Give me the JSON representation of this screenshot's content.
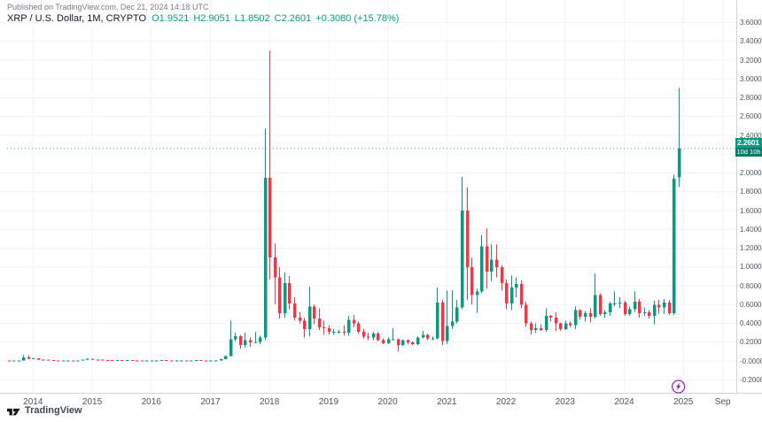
{
  "header": {
    "publish_text": "Published on TradingView.com, Dec 21, 2024 14:18 UTC"
  },
  "legend": {
    "title": "XRP / U.S. Dollar, 1M, CRYPTO",
    "items": [
      "O1.9521",
      "H2.9051",
      "L1.8502",
      "C2.2601",
      "+0.3080 (+15.78%)"
    ]
  },
  "price_axis": {
    "ticks": [
      "3.6000",
      "3.4000",
      "3.2000",
      "3.0000",
      "2.8000",
      "2.6000",
      "2.4000",
      "2.0000",
      "1.8000",
      "1.6000",
      "1.4000",
      "1.2000",
      "1.0000",
      "0.8000",
      "0.6000",
      "0.4000",
      "0.2000",
      "-0.0000",
      "-0.2000"
    ],
    "tag": {
      "price": "2.2601",
      "countdown": "10d 10h"
    }
  },
  "time_axis": {
    "ticks": [
      "2014",
      "2015",
      "2016",
      "2017",
      "2018",
      "2019",
      "2020",
      "2021",
      "2022",
      "2023",
      "2024",
      "2025",
      "Sep"
    ]
  },
  "footer": {
    "brand": "TradingView"
  },
  "colors": {
    "up": "#089981",
    "down": "#F23645",
    "event": "#9C27B0",
    "grid": "#F0F3FA",
    "border": "#D1D4DC"
  },
  "event_marker": {
    "month": "2024-12",
    "icon": "lightning"
  },
  "chart_data": {
    "type": "candlestick",
    "title": "XRP / U.S. Dollar",
    "interval": "1M",
    "exchange": "CRYPTO",
    "current": {
      "open": 1.9521,
      "high": 2.9051,
      "low": 1.8502,
      "close": 2.2601,
      "change": 0.308,
      "change_pct": 15.78
    },
    "price_line": 2.2601,
    "ylim": [
      -0.2,
      3.6
    ],
    "x_start": "2013-08",
    "months": [
      [
        "2013-08",
        0.005,
        0.006,
        0.004,
        0.004
      ],
      [
        "2013-09",
        0.004,
        0.005,
        0.003,
        0.004
      ],
      [
        "2013-10",
        0.004,
        0.005,
        0.003,
        0.004
      ],
      [
        "2013-11",
        0.004,
        0.062,
        0.004,
        0.04
      ],
      [
        "2013-12",
        0.04,
        0.06,
        0.018,
        0.025
      ],
      [
        "2014-01",
        0.025,
        0.031,
        0.018,
        0.027
      ],
      [
        "2014-02",
        0.027,
        0.028,
        0.01,
        0.013
      ],
      [
        "2014-03",
        0.013,
        0.016,
        0.01,
        0.012
      ],
      [
        "2014-04",
        0.012,
        0.013,
        0.006,
        0.008
      ],
      [
        "2014-05",
        0.008,
        0.009,
        0.004,
        0.005
      ],
      [
        "2014-06",
        0.005,
        0.006,
        0.003,
        0.004
      ],
      [
        "2014-07",
        0.004,
        0.006,
        0.003,
        0.005
      ],
      [
        "2014-08",
        0.005,
        0.006,
        0.004,
        0.005
      ],
      [
        "2014-09",
        0.005,
        0.006,
        0.003,
        0.004
      ],
      [
        "2014-10",
        0.004,
        0.006,
        0.003,
        0.005
      ],
      [
        "2014-11",
        0.005,
        0.015,
        0.004,
        0.012
      ],
      [
        "2014-12",
        0.012,
        0.028,
        0.011,
        0.022
      ],
      [
        "2015-01",
        0.022,
        0.024,
        0.01,
        0.014
      ],
      [
        "2015-02",
        0.014,
        0.016,
        0.01,
        0.013
      ],
      [
        "2015-03",
        0.013,
        0.014,
        0.007,
        0.009
      ],
      [
        "2015-04",
        0.009,
        0.01,
        0.006,
        0.008
      ],
      [
        "2015-05",
        0.008,
        0.009,
        0.006,
        0.007
      ],
      [
        "2015-06",
        0.007,
        0.012,
        0.006,
        0.009
      ],
      [
        "2015-07",
        0.009,
        0.01,
        0.007,
        0.008
      ],
      [
        "2015-08",
        0.008,
        0.009,
        0.006,
        0.008
      ],
      [
        "2015-09",
        0.008,
        0.008,
        0.006,
        0.007
      ],
      [
        "2015-10",
        0.007,
        0.008,
        0.004,
        0.005
      ],
      [
        "2015-11",
        0.005,
        0.006,
        0.003,
        0.004
      ],
      [
        "2015-12",
        0.004,
        0.007,
        0.004,
        0.006
      ],
      [
        "2016-01",
        0.006,
        0.007,
        0.005,
        0.006
      ],
      [
        "2016-02",
        0.006,
        0.008,
        0.005,
        0.007
      ],
      [
        "2016-03",
        0.007,
        0.009,
        0.006,
        0.008
      ],
      [
        "2016-04",
        0.008,
        0.008,
        0.006,
        0.007
      ],
      [
        "2016-05",
        0.007,
        0.007,
        0.005,
        0.006
      ],
      [
        "2016-06",
        0.006,
        0.008,
        0.005,
        0.007
      ],
      [
        "2016-07",
        0.007,
        0.008,
        0.006,
        0.007
      ],
      [
        "2016-08",
        0.007,
        0.007,
        0.005,
        0.006
      ],
      [
        "2016-09",
        0.006,
        0.007,
        0.005,
        0.006
      ],
      [
        "2016-10",
        0.006,
        0.009,
        0.006,
        0.008
      ],
      [
        "2016-11",
        0.008,
        0.008,
        0.006,
        0.007
      ],
      [
        "2016-12",
        0.007,
        0.007,
        0.005,
        0.006
      ],
      [
        "2017-01",
        0.006,
        0.007,
        0.005,
        0.006
      ],
      [
        "2017-02",
        0.006,
        0.007,
        0.005,
        0.006
      ],
      [
        "2017-03",
        0.006,
        0.026,
        0.005,
        0.02
      ],
      [
        "2017-04",
        0.02,
        0.06,
        0.018,
        0.051
      ],
      [
        "2017-05",
        0.051,
        0.43,
        0.048,
        0.23
      ],
      [
        "2017-06",
        0.23,
        0.3,
        0.21,
        0.263
      ],
      [
        "2017-07",
        0.263,
        0.275,
        0.13,
        0.17
      ],
      [
        "2017-08",
        0.17,
        0.3,
        0.14,
        0.22
      ],
      [
        "2017-09",
        0.22,
        0.25,
        0.15,
        0.2
      ],
      [
        "2017-10",
        0.2,
        0.31,
        0.19,
        0.204
      ],
      [
        "2017-11",
        0.204,
        0.27,
        0.18,
        0.25
      ],
      [
        "2017-12",
        0.25,
        2.47,
        0.22,
        1.95
      ],
      [
        "2018-01",
        1.95,
        3.3,
        0.868,
        1.1
      ],
      [
        "2018-02",
        1.1,
        1.25,
        0.6,
        0.89
      ],
      [
        "2018-03",
        0.89,
        1.0,
        0.45,
        0.51
      ],
      [
        "2018-04",
        0.51,
        0.94,
        0.46,
        0.83
      ],
      [
        "2018-05",
        0.83,
        0.9,
        0.55,
        0.61
      ],
      [
        "2018-06",
        0.61,
        0.68,
        0.43,
        0.46
      ],
      [
        "2018-07",
        0.46,
        0.52,
        0.4,
        0.43
      ],
      [
        "2018-08",
        0.43,
        0.46,
        0.25,
        0.34
      ],
      [
        "2018-09",
        0.34,
        0.79,
        0.26,
        0.58
      ],
      [
        "2018-10",
        0.58,
        0.6,
        0.39,
        0.45
      ],
      [
        "2018-11",
        0.45,
        0.56,
        0.33,
        0.36
      ],
      [
        "2018-12",
        0.36,
        0.43,
        0.28,
        0.35
      ],
      [
        "2019-01",
        0.35,
        0.38,
        0.28,
        0.31
      ],
      [
        "2019-02",
        0.31,
        0.34,
        0.28,
        0.31
      ],
      [
        "2019-03",
        0.31,
        0.33,
        0.29,
        0.31
      ],
      [
        "2019-04",
        0.31,
        0.38,
        0.27,
        0.3
      ],
      [
        "2019-05",
        0.3,
        0.48,
        0.27,
        0.44
      ],
      [
        "2019-06",
        0.44,
        0.49,
        0.36,
        0.4
      ],
      [
        "2019-07",
        0.4,
        0.42,
        0.29,
        0.31
      ],
      [
        "2019-08",
        0.31,
        0.34,
        0.24,
        0.26
      ],
      [
        "2019-09",
        0.26,
        0.3,
        0.22,
        0.25
      ],
      [
        "2019-10",
        0.25,
        0.31,
        0.22,
        0.29
      ],
      [
        "2019-11",
        0.29,
        0.31,
        0.21,
        0.22
      ],
      [
        "2019-12",
        0.22,
        0.24,
        0.18,
        0.19
      ],
      [
        "2020-01",
        0.19,
        0.25,
        0.18,
        0.23
      ],
      [
        "2020-02",
        0.23,
        0.35,
        0.22,
        0.23
      ],
      [
        "2020-03",
        0.23,
        0.24,
        0.1,
        0.17
      ],
      [
        "2020-04",
        0.17,
        0.23,
        0.16,
        0.22
      ],
      [
        "2020-05",
        0.22,
        0.23,
        0.18,
        0.2
      ],
      [
        "2020-06",
        0.2,
        0.21,
        0.17,
        0.18
      ],
      [
        "2020-07",
        0.18,
        0.26,
        0.17,
        0.25
      ],
      [
        "2020-08",
        0.25,
        0.32,
        0.24,
        0.28
      ],
      [
        "2020-09",
        0.28,
        0.29,
        0.22,
        0.24
      ],
      [
        "2020-10",
        0.24,
        0.26,
        0.22,
        0.24
      ],
      [
        "2020-11",
        0.24,
        0.78,
        0.23,
        0.62
      ],
      [
        "2020-12",
        0.62,
        0.65,
        0.17,
        0.21
      ],
      [
        "2021-01",
        0.21,
        0.75,
        0.18,
        0.37
      ],
      [
        "2021-02",
        0.37,
        0.75,
        0.34,
        0.42
      ],
      [
        "2021-03",
        0.42,
        0.65,
        0.4,
        0.57
      ],
      [
        "2021-04",
        0.57,
        1.96,
        0.55,
        1.6
      ],
      [
        "2021-05",
        1.6,
        1.85,
        0.65,
        1.0
      ],
      [
        "2021-06",
        1.0,
        1.1,
        0.6,
        0.7
      ],
      [
        "2021-07",
        0.7,
        0.77,
        0.51,
        0.74
      ],
      [
        "2021-08",
        0.74,
        1.34,
        0.72,
        1.22
      ],
      [
        "2021-09",
        1.22,
        1.41,
        0.77,
        0.95
      ],
      [
        "2021-10",
        0.95,
        1.24,
        0.85,
        1.08
      ],
      [
        "2021-11",
        1.08,
        1.24,
        0.89,
        1.0
      ],
      [
        "2021-12",
        1.0,
        1.02,
        0.75,
        0.83
      ],
      [
        "2022-01",
        0.83,
        0.87,
        0.55,
        0.61
      ],
      [
        "2022-02",
        0.61,
        0.91,
        0.54,
        0.78
      ],
      [
        "2022-03",
        0.78,
        0.89,
        0.68,
        0.82
      ],
      [
        "2022-04",
        0.82,
        0.86,
        0.56,
        0.6
      ],
      [
        "2022-05",
        0.6,
        0.63,
        0.36,
        0.4
      ],
      [
        "2022-06",
        0.4,
        0.42,
        0.28,
        0.33
      ],
      [
        "2022-07",
        0.33,
        0.4,
        0.3,
        0.35
      ],
      [
        "2022-08",
        0.35,
        0.39,
        0.32,
        0.33
      ],
      [
        "2022-09",
        0.33,
        0.56,
        0.31,
        0.48
      ],
      [
        "2022-10",
        0.48,
        0.49,
        0.42,
        0.46
      ],
      [
        "2022-11",
        0.46,
        0.52,
        0.32,
        0.4
      ],
      [
        "2022-12",
        0.4,
        0.41,
        0.32,
        0.34
      ],
      [
        "2023-01",
        0.34,
        0.43,
        0.33,
        0.4
      ],
      [
        "2023-02",
        0.4,
        0.42,
        0.36,
        0.38
      ],
      [
        "2023-03",
        0.38,
        0.58,
        0.34,
        0.54
      ],
      [
        "2023-04",
        0.54,
        0.55,
        0.44,
        0.47
      ],
      [
        "2023-05",
        0.47,
        0.53,
        0.42,
        0.51
      ],
      [
        "2023-06",
        0.51,
        0.56,
        0.41,
        0.47
      ],
      [
        "2023-07",
        0.47,
        0.93,
        0.45,
        0.7
      ],
      [
        "2023-08",
        0.7,
        0.72,
        0.48,
        0.5
      ],
      [
        "2023-09",
        0.5,
        0.54,
        0.46,
        0.52
      ],
      [
        "2023-10",
        0.52,
        0.63,
        0.48,
        0.61
      ],
      [
        "2023-11",
        0.61,
        0.74,
        0.58,
        0.61
      ],
      [
        "2023-12",
        0.61,
        0.68,
        0.56,
        0.62
      ],
      [
        "2024-01",
        0.62,
        0.64,
        0.48,
        0.5
      ],
      [
        "2024-02",
        0.5,
        0.58,
        0.48,
        0.55
      ],
      [
        "2024-03",
        0.55,
        0.74,
        0.52,
        0.63
      ],
      [
        "2024-04",
        0.63,
        0.66,
        0.46,
        0.51
      ],
      [
        "2024-05",
        0.51,
        0.57,
        0.48,
        0.52
      ],
      [
        "2024-06",
        0.52,
        0.54,
        0.45,
        0.48
      ],
      [
        "2024-07",
        0.48,
        0.64,
        0.39,
        0.6
      ],
      [
        "2024-08",
        0.6,
        0.65,
        0.5,
        0.57
      ],
      [
        "2024-09",
        0.57,
        0.66,
        0.5,
        0.62
      ],
      [
        "2024-10",
        0.62,
        0.65,
        0.49,
        0.51
      ],
      [
        "2024-11",
        0.51,
        1.98,
        0.49,
        1.94
      ],
      [
        "2024-12",
        1.9521,
        2.9051,
        1.8502,
        2.2601
      ]
    ]
  }
}
